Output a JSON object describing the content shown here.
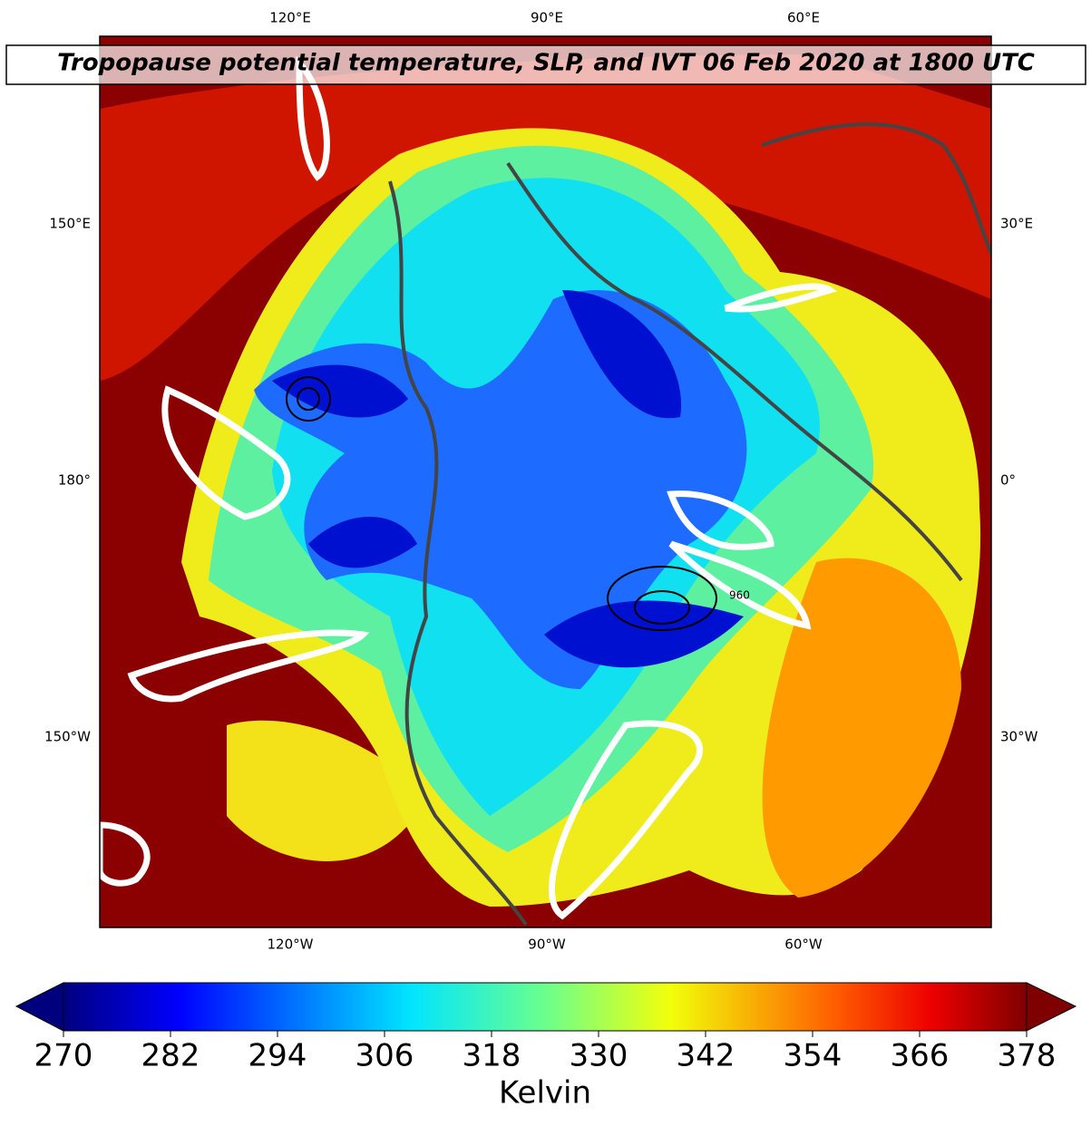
{
  "title": "Tropopause potential temperature, SLP, and IVT 06 Feb 2020 at 1800 UTC",
  "map": {
    "top_labels": [
      "120°E",
      "90°E",
      "60°E"
    ],
    "bottom_labels": [
      "120°W",
      "90°W",
      "60°W"
    ],
    "left_labels": [
      "150°E",
      "180°",
      "150°W"
    ],
    "right_labels": [
      "30°E",
      "0°",
      "30°W"
    ],
    "contour_label": "960"
  },
  "colorbar": {
    "label": "Kelvin",
    "lim": [
      270,
      378
    ],
    "ticks": [
      270,
      282,
      294,
      306,
      318,
      330,
      342,
      354,
      366,
      378
    ]
  }
}
